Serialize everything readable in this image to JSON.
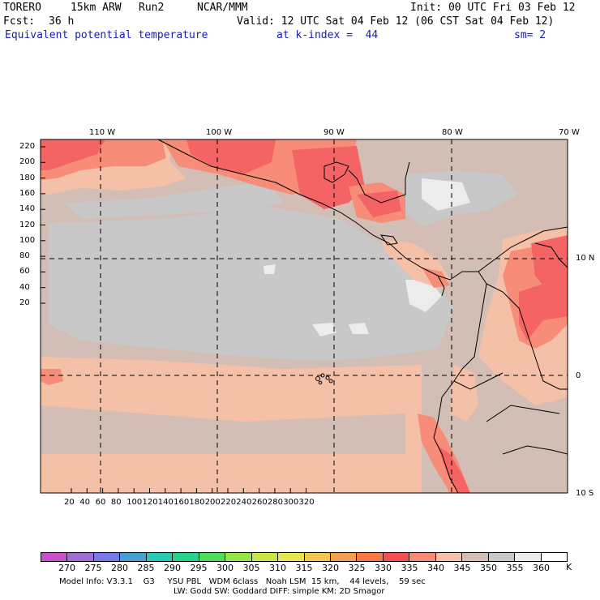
{
  "header": {
    "model": "TORERO",
    "resolution": "15km ARW",
    "run": "Run2",
    "org": "NCAR/MMM",
    "init": "Init: 00 UTC Fri 03 Feb 12",
    "fcst_label": "Fcst:",
    "fcst_value": "36 h",
    "valid": "Valid: 12 UTC Sat 04 Feb 12 (06 CST Sat 04 Feb 12)",
    "field": "Equivalent potential temperature",
    "level": "at k-index =  44",
    "smoothing": "sm= 2"
  },
  "map": {
    "top_lon_labels": [
      "110 W",
      "100 W",
      "90 W",
      "80 W",
      "70 W"
    ],
    "right_lat_labels": [
      "10 N",
      "0",
      "10 S"
    ],
    "left_axis_ticks": [
      "220",
      "200",
      "180",
      "160",
      "140",
      "120",
      "100",
      "80",
      "60",
      "40",
      "20"
    ],
    "bottom_axis_ticks": [
      "20",
      "40",
      "60",
      "80",
      "100",
      "120",
      "140",
      "160",
      "180",
      "200",
      "220",
      "240",
      "260",
      "280",
      "300",
      "320"
    ],
    "colors": {
      "c340": "#f5c0a8",
      "c345": "#d2beb4",
      "c350": "#c8c8c8",
      "c355": "#ececec",
      "c330": "#f56464",
      "c335": "#f78c78",
      "c325": "#f56e50"
    }
  },
  "colorbar": {
    "unit": "K",
    "labels": [
      "270",
      "275",
      "280",
      "285",
      "290",
      "295",
      "300",
      "305",
      "310",
      "315",
      "320",
      "325",
      "330",
      "335",
      "340",
      "345",
      "350",
      "355",
      "360"
    ],
    "colors": [
      "#c850c8",
      "#a06ed2",
      "#7878e6",
      "#46a0d2",
      "#28c8b4",
      "#28d28c",
      "#50dc5a",
      "#96e646",
      "#c8e646",
      "#e6e650",
      "#f0c850",
      "#f0a050",
      "#f57846",
      "#f05050",
      "#f58c78",
      "#f5c0a8",
      "#d2beb4",
      "#c8c8c8",
      "#ececec",
      "#ffffff"
    ]
  },
  "footer": {
    "line1": "Model Info: V3.3.1    G3     YSU PBL   WDM 6class   Noah LSM  15 km,    44 levels,    59 sec",
    "line2": "LW: Godd SW: Goddard DIFF: simple KM: 2D Smagor"
  }
}
